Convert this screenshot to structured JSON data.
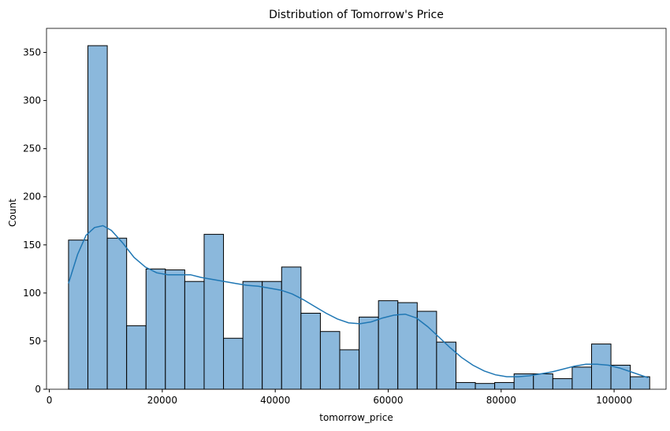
{
  "chart_data": {
    "type": "bar",
    "title": "Distribution of Tomorrow's Price",
    "xlabel": "tomorrow_price",
    "ylabel": "Count",
    "xlim": [
      -500,
      109200
    ],
    "ylim": [
      0,
      375
    ],
    "x_ticks": [
      0,
      20000,
      40000,
      60000,
      80000,
      100000
    ],
    "y_ticks": [
      0,
      50,
      100,
      150,
      200,
      250,
      300,
      350
    ],
    "bin_start": 3400,
    "bin_width": 3430,
    "values": [
      155,
      357,
      157,
      66,
      125,
      124,
      112,
      161,
      53,
      112,
      112,
      127,
      79,
      60,
      41,
      75,
      92,
      90,
      81,
      49,
      7,
      6,
      7,
      16,
      16,
      11,
      23,
      47,
      25,
      13
    ],
    "kde": {
      "x": [
        3400,
        5000,
        6500,
        8000,
        9500,
        11000,
        13000,
        15000,
        17000,
        19000,
        21000,
        23000,
        25000,
        27000,
        29000,
        31000,
        33000,
        35000,
        37000,
        39000,
        41000,
        43000,
        45000,
        47000,
        49000,
        51000,
        53000,
        55000,
        57000,
        59000,
        61000,
        63000,
        65000,
        67000,
        69000,
        71000,
        73000,
        75000,
        77000,
        79000,
        81000,
        83000,
        85000,
        87000,
        89000,
        91000,
        93000,
        95000,
        97000,
        99000,
        101000,
        103000,
        106000
      ],
      "y": [
        110,
        140,
        160,
        168,
        170,
        165,
        152,
        137,
        127,
        121,
        119,
        119,
        119,
        116,
        114,
        112,
        110,
        108,
        107,
        105,
        103,
        99,
        93,
        86,
        79,
        73,
        69,
        68,
        70,
        74,
        77,
        78,
        74,
        65,
        54,
        43,
        33,
        25,
        19,
        15,
        13,
        13,
        14,
        16,
        18,
        21,
        24,
        26,
        26,
        25,
        22,
        18,
        12
      ]
    },
    "bar_color": "#8bb8dc",
    "bar_edge_color": "#000000",
    "line_color": "#1f77b4",
    "grid": false
  }
}
